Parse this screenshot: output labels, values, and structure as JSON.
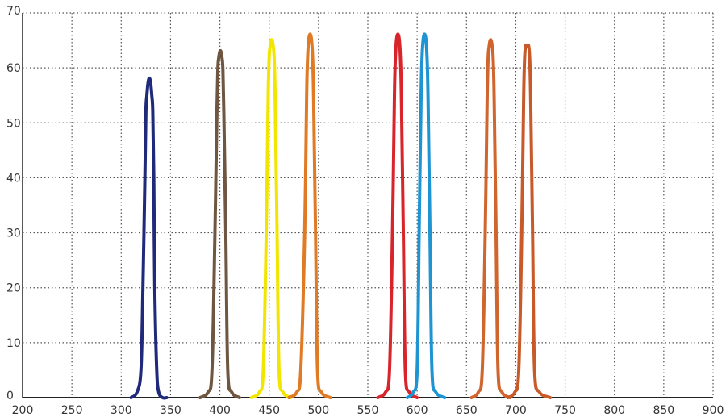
{
  "chart_data": {
    "type": "line",
    "title": "",
    "xlabel": "",
    "ylabel": "",
    "xlim": [
      200,
      900
    ],
    "ylim": [
      0,
      70
    ],
    "x_ticks": [
      200,
      250,
      300,
      350,
      400,
      450,
      500,
      550,
      600,
      650,
      700,
      750,
      800,
      850,
      900
    ],
    "y_ticks": [
      0,
      10,
      20,
      30,
      40,
      50,
      60,
      70
    ],
    "x_tick_labels": [
      "200",
      "250",
      "300",
      "350",
      "400",
      "450",
      "500",
      "550",
      "600",
      "650",
      "700",
      "750",
      "800",
      "850",
      "900"
    ],
    "y_tick_labels": [
      "0",
      "10",
      "20",
      "30",
      "40",
      "50",
      "60",
      "70"
    ],
    "grid": true,
    "legend": "none",
    "series": [
      {
        "color": "#1f2a7a",
        "x": [
          310,
          316,
          320,
          322,
          324,
          325,
          326,
          327,
          328,
          329,
          330,
          331,
          332,
          333,
          334,
          336,
          338,
          342,
          346
        ],
        "y": [
          0,
          1,
          5,
          20,
          40,
          52,
          55,
          57,
          58,
          58,
          57,
          55,
          52,
          40,
          20,
          5,
          1,
          0,
          0
        ]
      },
      {
        "color": "#6e5640",
        "x": [
          380,
          388,
          392,
          395,
          397,
          398,
          399,
          400,
          401,
          402,
          403,
          404,
          406,
          408,
          412,
          420
        ],
        "y": [
          0,
          1,
          5,
          30,
          52,
          60,
          62,
          63,
          63,
          62,
          60,
          52,
          30,
          5,
          1,
          0
        ]
      },
      {
        "color": "#f2e600",
        "x": [
          432,
          440,
          444,
          447,
          449,
          450,
          451,
          452,
          453,
          454,
          455,
          456,
          458,
          460,
          464,
          472
        ],
        "y": [
          0,
          1,
          5,
          30,
          55,
          62,
          64,
          65,
          65,
          64,
          62,
          55,
          30,
          5,
          1,
          0
        ]
      },
      {
        "color": "#e07a25",
        "x": [
          470,
          478,
          482,
          486,
          488,
          489,
          490,
          491,
          492,
          493,
          494,
          495,
          497,
          499,
          503,
          512
        ],
        "y": [
          0,
          1,
          5,
          30,
          55,
          62,
          65,
          66,
          66,
          65,
          62,
          55,
          30,
          5,
          1,
          0
        ]
      },
      {
        "color": "#d8252c",
        "x": [
          560,
          568,
          572,
          575,
          577,
          578,
          579,
          580,
          581,
          582,
          583,
          584,
          586,
          588,
          592,
          600
        ],
        "y": [
          0,
          1,
          5,
          30,
          55,
          62,
          65,
          66,
          66,
          65,
          62,
          55,
          30,
          5,
          1,
          0
        ]
      },
      {
        "color": "#1f94d2",
        "x": [
          590,
          596,
          600,
          602,
          604,
          605,
          606,
          607,
          608,
          609,
          610,
          611,
          613,
          615,
          619,
          628
        ],
        "y": [
          0,
          1,
          5,
          30,
          55,
          62,
          65,
          66,
          66,
          65,
          62,
          55,
          30,
          5,
          1,
          0
        ]
      },
      {
        "color": "#d0652d",
        "x": [
          655,
          662,
          666,
          669,
          671,
          672,
          673,
          674,
          675,
          676,
          677,
          678,
          680,
          682,
          686,
          694
        ],
        "y": [
          0,
          1,
          5,
          30,
          55,
          62,
          64,
          65,
          65,
          64,
          62,
          55,
          30,
          5,
          1,
          0
        ]
      },
      {
        "color": "#c85a2a",
        "x": [
          692,
          699,
          703,
          706,
          708,
          709,
          710,
          711,
          712,
          713,
          714,
          715,
          717,
          719,
          724,
          735
        ],
        "y": [
          0,
          1,
          5,
          30,
          55,
          62,
          64,
          64,
          64,
          64,
          62,
          55,
          30,
          5,
          1,
          0
        ]
      }
    ]
  }
}
